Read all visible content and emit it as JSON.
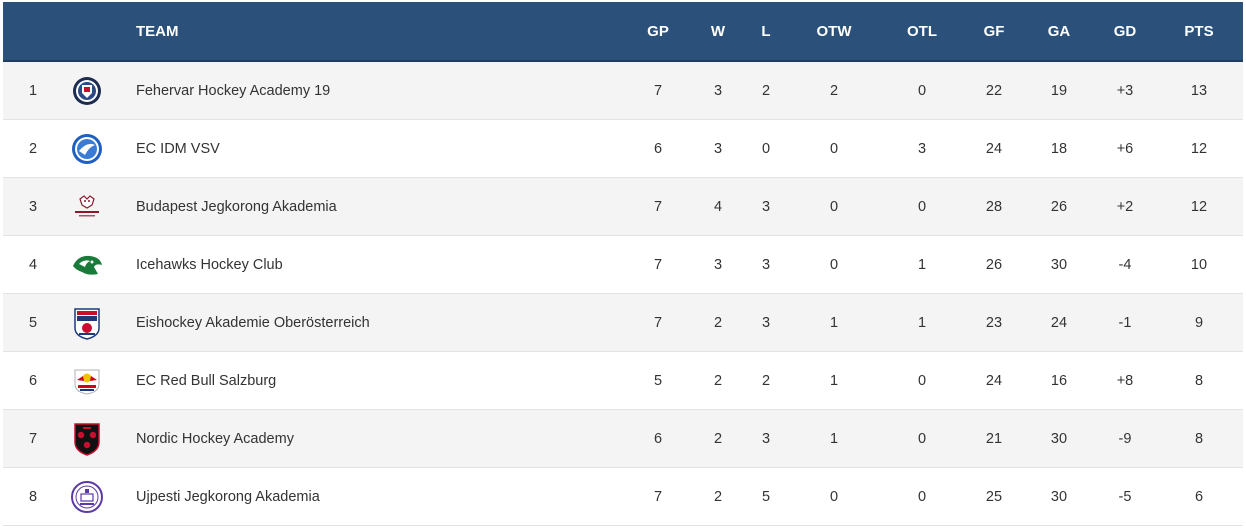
{
  "table": {
    "headers": {
      "rank": "",
      "logo": "",
      "team": "TEAM",
      "gp": "GP",
      "w": "W",
      "l": "L",
      "otw": "OTW",
      "otl": "OTL",
      "gf": "GF",
      "ga": "GA",
      "gd": "GD",
      "pts": "PTS"
    },
    "rows": [
      {
        "rank": "1",
        "logo": "fehervar-logo-icon",
        "team": "Fehervar Hockey Academy 19",
        "gp": "7",
        "w": "3",
        "l": "2",
        "otw": "2",
        "otl": "0",
        "gf": "22",
        "ga": "19",
        "gd": "+3",
        "pts": "13"
      },
      {
        "rank": "2",
        "logo": "vsv-logo-icon",
        "team": "EC IDM VSV",
        "gp": "6",
        "w": "3",
        "l": "0",
        "otw": "0",
        "otl": "3",
        "gf": "24",
        "ga": "18",
        "gd": "+6",
        "pts": "12"
      },
      {
        "rank": "3",
        "logo": "budapest-logo-icon",
        "team": "Budapest Jegkorong Akademia",
        "gp": "7",
        "w": "4",
        "l": "3",
        "otw": "0",
        "otl": "0",
        "gf": "28",
        "ga": "26",
        "gd": "+2",
        "pts": "12"
      },
      {
        "rank": "4",
        "logo": "icehawks-logo-icon",
        "team": "Icehawks Hockey Club",
        "gp": "7",
        "w": "3",
        "l": "3",
        "otw": "0",
        "otl": "1",
        "gf": "26",
        "ga": "30",
        "gd": "-4",
        "pts": "10"
      },
      {
        "rank": "5",
        "logo": "ooe-akademie-logo-icon",
        "team": "Eishockey Akademie Oberösterreich",
        "gp": "7",
        "w": "2",
        "l": "3",
        "otw": "1",
        "otl": "1",
        "gf": "23",
        "ga": "24",
        "gd": "-1",
        "pts": "9"
      },
      {
        "rank": "6",
        "logo": "red-bull-logo-icon",
        "team": "EC Red Bull Salzburg",
        "gp": "5",
        "w": "2",
        "l": "2",
        "otw": "1",
        "otl": "0",
        "gf": "24",
        "ga": "16",
        "gd": "+8",
        "pts": "8"
      },
      {
        "rank": "7",
        "logo": "nordic-logo-icon",
        "team": "Nordic Hockey Academy",
        "gp": "6",
        "w": "2",
        "l": "3",
        "otw": "1",
        "otl": "0",
        "gf": "21",
        "ga": "30",
        "gd": "-9",
        "pts": "8"
      },
      {
        "rank": "8",
        "logo": "ujpesti-logo-icon",
        "team": "Ujpesti Jegkorong Akademia",
        "gp": "7",
        "w": "2",
        "l": "5",
        "otw": "0",
        "otl": "0",
        "gf": "25",
        "ga": "30",
        "gd": "-5",
        "pts": "6"
      }
    ]
  },
  "colors": {
    "header_bg": "#2b5079",
    "header_text": "#ffffff",
    "row_odd": "#f4f4f4",
    "row_even": "#ffffff",
    "text": "#333333"
  }
}
